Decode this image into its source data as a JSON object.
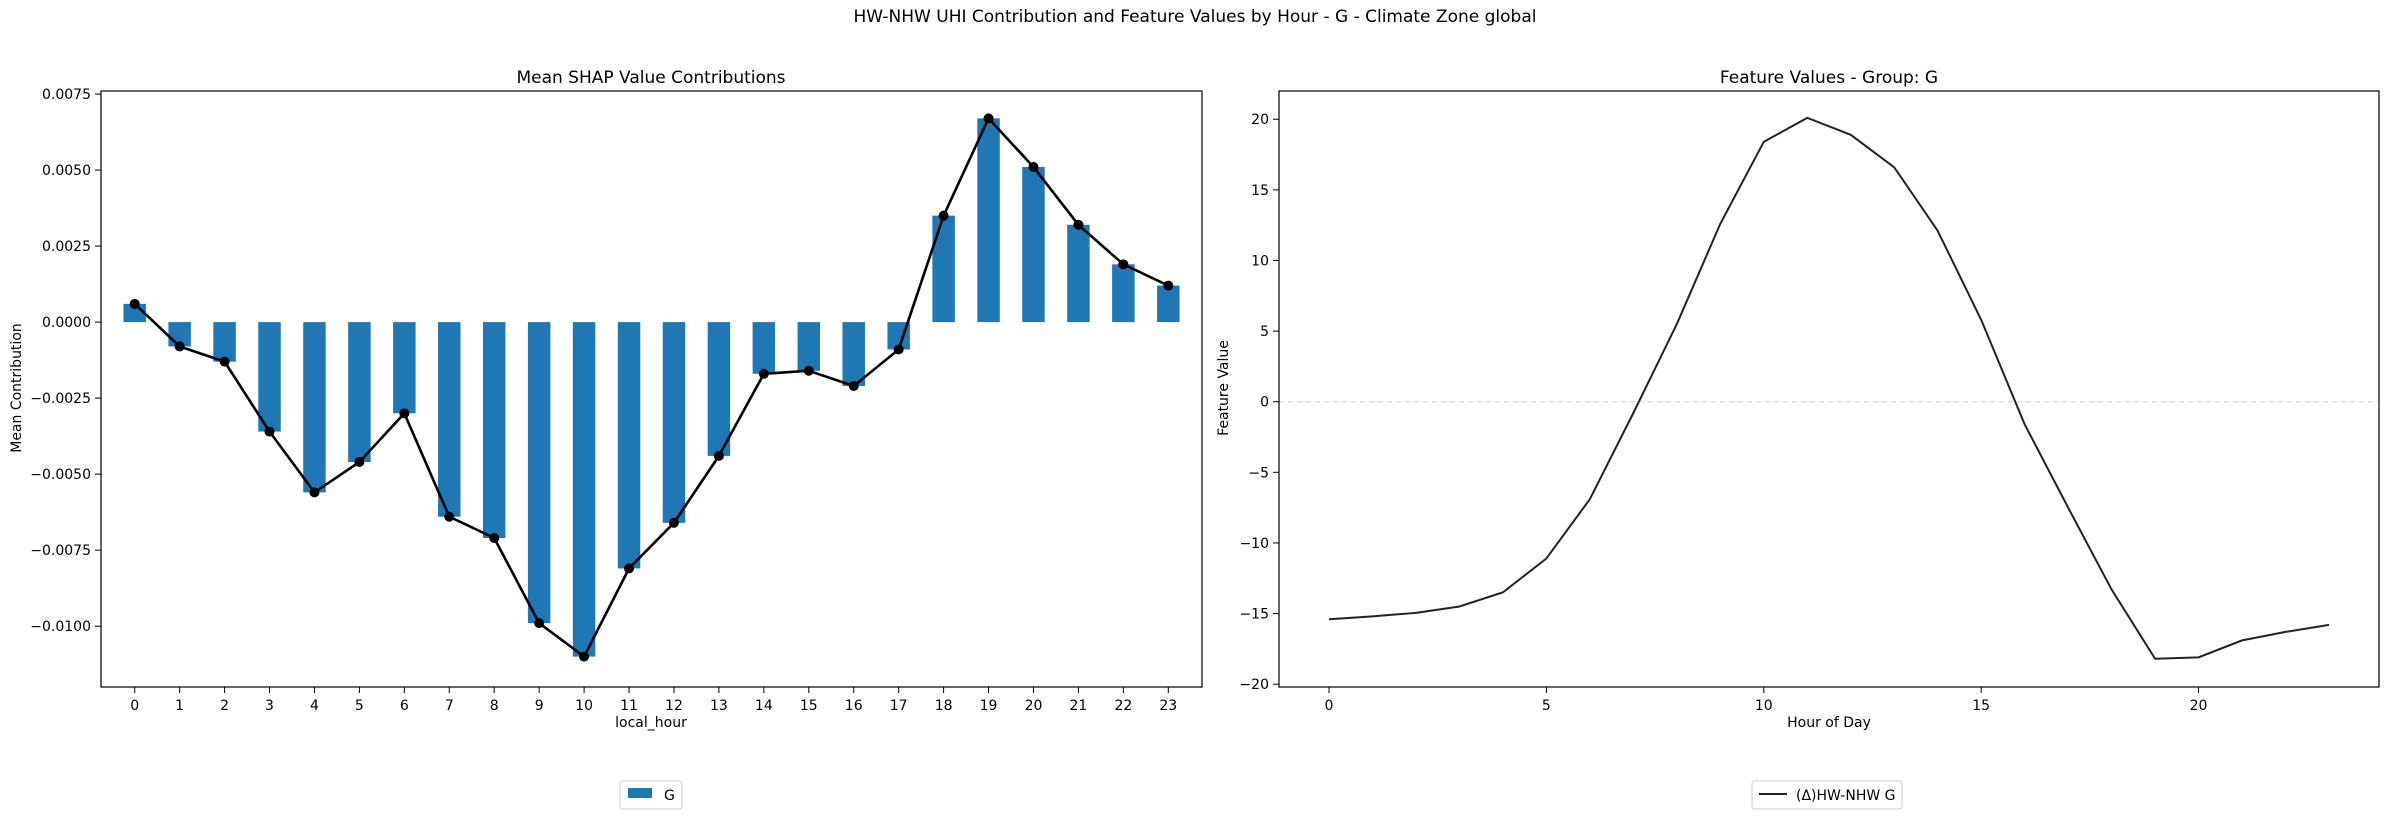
{
  "figure": {
    "suptitle": "HW-NHW UHI Contribution and Feature Values by Hour - G - Climate Zone global"
  },
  "chart_data": [
    {
      "type": "bar",
      "title": "Mean SHAP Value Contributions",
      "xlabel": "local_hour",
      "ylabel": "Mean Contribution",
      "categories": [
        "0",
        "1",
        "2",
        "3",
        "4",
        "5",
        "6",
        "7",
        "8",
        "9",
        "10",
        "11",
        "12",
        "13",
        "14",
        "15",
        "16",
        "17",
        "18",
        "19",
        "20",
        "21",
        "22",
        "23"
      ],
      "series": [
        {
          "name": "G",
          "color": "#1f77b4",
          "values": [
            0.0006,
            -0.0008,
            -0.0013,
            -0.0036,
            -0.0056,
            -0.0046,
            -0.003,
            -0.0064,
            -0.0071,
            -0.0099,
            -0.011,
            -0.0081,
            -0.0066,
            -0.0044,
            -0.0017,
            -0.0016,
            -0.0021,
            -0.0009,
            0.0035,
            0.0067,
            0.0051,
            0.0032,
            0.0019,
            0.0012
          ]
        }
      ],
      "overlay_line": {
        "color": "#000000",
        "marker": "circle"
      },
      "ylim": [
        -0.012,
        0.0076
      ],
      "yticks": [
        -0.01,
        -0.0075,
        -0.005,
        -0.0025,
        0.0,
        0.0025,
        0.005,
        0.0075
      ],
      "ytick_labels": [
        "−0.0100",
        "−0.0075",
        "−0.0050",
        "−0.0025",
        "0.0000",
        "0.0025",
        "0.0050",
        "0.0075"
      ],
      "legend": {
        "placement": "bottom-center",
        "entries": [
          "G"
        ]
      },
      "grid": false
    },
    {
      "type": "line",
      "title": "Feature Values - Group: G",
      "xlabel": "Hour of Day",
      "ylabel": "Feature Value",
      "x": [
        0,
        1,
        2,
        3,
        4,
        5,
        6,
        7,
        8,
        9,
        10,
        11,
        12,
        13,
        14,
        15,
        16,
        17,
        18,
        19,
        20,
        21,
        22,
        23
      ],
      "series": [
        {
          "name": "(Δ)HW-NHW G",
          "color": "#222222",
          "values": [
            -15.4,
            -15.2,
            -14.95,
            -14.5,
            -13.5,
            -11.1,
            -6.9,
            -0.8,
            5.5,
            12.6,
            18.4,
            20.1,
            18.9,
            16.6,
            12.1,
            5.8,
            -1.6,
            -7.5,
            -13.3,
            -18.2,
            -18.1,
            -16.9,
            -16.3,
            -15.8
          ]
        }
      ],
      "xlim": [
        -1.15,
        24.15
      ],
      "ylim": [
        -20.2,
        22
      ],
      "xticks": [
        0,
        5,
        10,
        15,
        20
      ],
      "yticks": [
        -20,
        -15,
        -10,
        -5,
        0,
        5,
        10,
        15,
        20
      ],
      "ytick_labels": [
        "−20",
        "−15",
        "−10",
        "−5",
        "0",
        "5",
        "10",
        "15",
        "20"
      ],
      "zero_line": {
        "style": "dashed",
        "color": "#cccccc"
      },
      "legend": {
        "placement": "bottom-center",
        "entries": [
          "(Δ)HW-NHW G"
        ]
      },
      "grid": false
    }
  ]
}
